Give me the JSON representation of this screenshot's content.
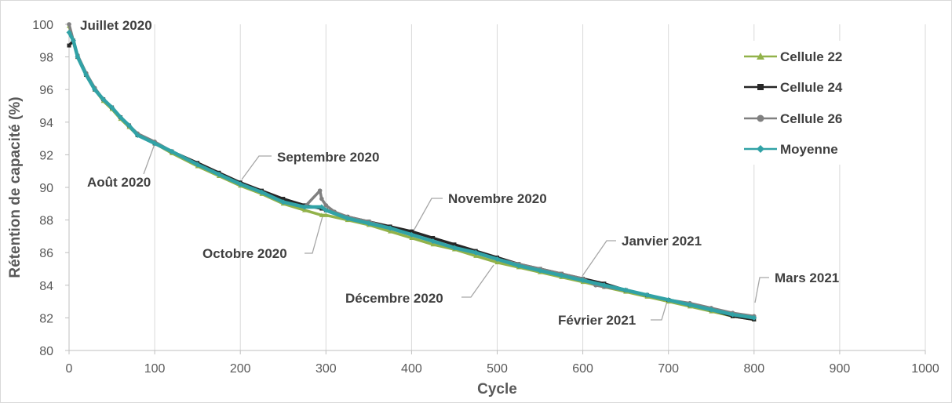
{
  "chart_data": {
    "type": "line",
    "xlabel": "Cycle",
    "ylabel": "Rétention de capacité (%)",
    "xlim": [
      0,
      1000
    ],
    "ylim": [
      80,
      100
    ],
    "xticks": [
      0,
      100,
      200,
      300,
      400,
      500,
      600,
      700,
      800,
      900,
      1000
    ],
    "yticks": [
      80,
      82,
      84,
      86,
      88,
      90,
      92,
      94,
      96,
      98,
      100
    ],
    "grid": "vertical",
    "legend_position": "top-right",
    "series": [
      {
        "name": "Cellule 22",
        "color": "#92b24a",
        "marker": "triangle",
        "x": [
          0,
          5,
          10,
          20,
          30,
          40,
          50,
          60,
          70,
          80,
          100,
          120,
          150,
          175,
          200,
          225,
          250,
          275,
          295,
          300,
          325,
          350,
          375,
          400,
          425,
          450,
          475,
          500,
          525,
          550,
          575,
          600,
          625,
          650,
          675,
          700,
          725,
          750,
          775,
          800
        ],
        "values": [
          99.9,
          98.9,
          98.0,
          96.9,
          96.0,
          95.3,
          94.8,
          94.2,
          93.7,
          93.2,
          92.7,
          92.1,
          91.3,
          90.7,
          90.1,
          89.6,
          89.0,
          88.6,
          88.3,
          88.3,
          88.0,
          87.7,
          87.3,
          86.9,
          86.5,
          86.2,
          85.8,
          85.4,
          85.1,
          84.8,
          84.5,
          84.2,
          83.9,
          83.6,
          83.3,
          83.0,
          82.7,
          82.4,
          82.1,
          81.9
        ]
      },
      {
        "name": "Cellule 24",
        "color": "#262626",
        "marker": "square",
        "x": [
          0,
          5,
          10,
          20,
          30,
          40,
          50,
          60,
          70,
          80,
          100,
          120,
          150,
          175,
          200,
          225,
          250,
          275,
          295,
          300,
          325,
          350,
          375,
          400,
          425,
          450,
          475,
          500,
          525,
          550,
          575,
          600,
          625,
          650,
          675,
          700,
          725,
          750,
          775,
          800
        ],
        "values": [
          98.7,
          99.0,
          98.0,
          96.9,
          96.0,
          95.4,
          94.9,
          94.3,
          93.8,
          93.2,
          92.7,
          92.2,
          91.5,
          90.9,
          90.3,
          89.8,
          89.3,
          88.9,
          88.7,
          88.6,
          88.2,
          87.9,
          87.6,
          87.3,
          86.9,
          86.5,
          86.1,
          85.7,
          85.3,
          85.0,
          84.7,
          84.4,
          84.1,
          83.7,
          83.4,
          83.1,
          82.8,
          82.5,
          82.1,
          81.9
        ]
      },
      {
        "name": "Cellule 26",
        "color": "#808080",
        "marker": "circle",
        "x": [
          0,
          5,
          10,
          20,
          30,
          40,
          50,
          60,
          70,
          80,
          100,
          120,
          150,
          175,
          200,
          225,
          250,
          275,
          293,
          295,
          300,
          310,
          325,
          350,
          375,
          400,
          425,
          450,
          475,
          500,
          525,
          550,
          575,
          600,
          615,
          625,
          650,
          675,
          700,
          725,
          750,
          775,
          800
        ],
        "values": [
          100.0,
          99.0,
          98.1,
          97.0,
          96.1,
          95.4,
          94.9,
          94.3,
          93.8,
          93.3,
          92.8,
          92.2,
          91.4,
          90.8,
          90.2,
          89.7,
          89.1,
          88.8,
          89.8,
          89.3,
          88.9,
          88.5,
          88.2,
          87.9,
          87.5,
          87.1,
          86.7,
          86.3,
          86.0,
          85.6,
          85.3,
          85.0,
          84.7,
          84.4,
          84.0,
          83.9,
          83.7,
          83.4,
          83.1,
          82.9,
          82.6,
          82.3,
          82.1
        ]
      },
      {
        "name": "Moyenne",
        "color": "#31a2a6",
        "marker": "diamond",
        "x": [
          0,
          5,
          10,
          20,
          30,
          40,
          50,
          60,
          70,
          80,
          100,
          120,
          150,
          175,
          200,
          225,
          250,
          275,
          295,
          300,
          325,
          350,
          375,
          400,
          425,
          450,
          475,
          500,
          525,
          550,
          575,
          600,
          625,
          650,
          675,
          700,
          725,
          750,
          775,
          800
        ],
        "values": [
          99.5,
          99.0,
          98.0,
          96.9,
          96.0,
          95.4,
          94.9,
          94.3,
          93.8,
          93.2,
          92.7,
          92.2,
          91.4,
          90.8,
          90.2,
          89.7,
          89.1,
          88.8,
          88.8,
          88.6,
          88.1,
          87.8,
          87.5,
          87.1,
          86.7,
          86.3,
          86.0,
          85.6,
          85.2,
          84.9,
          84.6,
          84.3,
          84.0,
          83.7,
          83.4,
          83.1,
          82.8,
          82.5,
          82.2,
          82.0
        ]
      }
    ],
    "annotations": [
      {
        "text": "Juillet 2020",
        "x": 0,
        "y": 100.0
      },
      {
        "text": "Août 2020",
        "x": 100,
        "y": 92.7
      },
      {
        "text": "Septembre 2020",
        "x": 200,
        "y": 90.2
      },
      {
        "text": "Octobre 2020",
        "x": 300,
        "y": 88.6
      },
      {
        "text": "Novembre 2020",
        "x": 400,
        "y": 87.1
      },
      {
        "text": "Décembre 2020",
        "x": 500,
        "y": 85.6
      },
      {
        "text": "Janvier 2021",
        "x": 600,
        "y": 84.3
      },
      {
        "text": "Février 2021",
        "x": 700,
        "y": 83.1
      },
      {
        "text": "Mars 2021",
        "x": 800,
        "y": 82.0
      }
    ]
  }
}
